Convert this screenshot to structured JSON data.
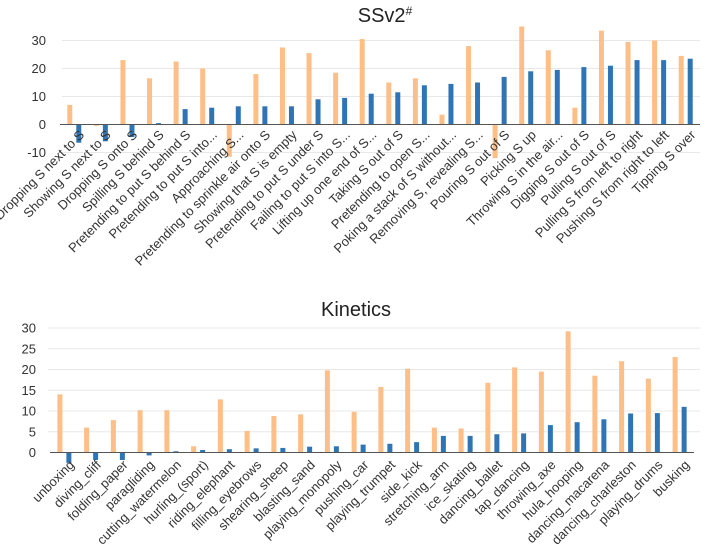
{
  "colors": {
    "series_a": "#fdbf87",
    "series_b": "#2f75b5"
  },
  "chart_data": [
    {
      "type": "bar",
      "title": "SSv2",
      "title_sup": "#",
      "xlabel": "",
      "ylabel": "",
      "ylim": [
        -13,
        36
      ],
      "yticks": [
        -10,
        0,
        10,
        20,
        30
      ],
      "grid": true,
      "categories": [
        "Dropping S next to S",
        "Showing S next to S",
        "Dropping S onto S",
        "Spilling S behind S",
        "Pretending to put S behind S",
        "Pretending to put S into...",
        "Approaching S...",
        "Pretending to sprinkle air onto S",
        "Showing that S is empty",
        "Pretending to put S under S",
        "Failing to put S into S...",
        "Lifting up one end of S...",
        "Taking S out of S",
        "Pretending to open S...",
        "Poking a stack of S without...",
        "Removing S, revealing S...",
        "Pouring S out of S",
        "Picking S up",
        "Throwing S in the air...",
        "Digging S out of S",
        "Pulling S out of S",
        "Pulling S from left to right",
        "Pushing S from right to left",
        "Tipping S over"
      ],
      "series": [
        {
          "name": "series_a",
          "values": [
            7,
            -0.5,
            23,
            16.5,
            22.5,
            20,
            -11.5,
            18,
            27.5,
            25.5,
            18.5,
            30.5,
            15,
            16.5,
            3.5,
            28,
            -12,
            35,
            26.5,
            6,
            33.5,
            29.5,
            30,
            24.5
          ]
        },
        {
          "name": "series_b",
          "values": [
            -6.5,
            -6,
            -4.5,
            0.5,
            5.5,
            6,
            6.5,
            6.5,
            6.5,
            9,
            9.5,
            11,
            11.5,
            14,
            14.5,
            15,
            17,
            19,
            19.5,
            20.5,
            21,
            23,
            23,
            23.5
          ]
        }
      ]
    },
    {
      "type": "bar",
      "title": "Kinetics",
      "xlabel": "",
      "ylabel": "",
      "ylim": [
        -2.5,
        31
      ],
      "yticks": [
        0,
        5,
        10,
        15,
        20,
        25,
        30
      ],
      "grid": true,
      "categories": [
        "unboxing",
        "diving_cliff",
        "folding_paper",
        "paragliding",
        "cutting_watermelon",
        "hurling_(sport)",
        "riding_elephant",
        "filling_eyebrows",
        "shearing_sheep",
        "blasting_sand",
        "playing_monopoly",
        "pushing_car",
        "playing_trumpet",
        "side_kick",
        "stretching_arm",
        "ice_skating",
        "dancing_ballet",
        "tap_dancing",
        "throwing_axe",
        "hula_hooping",
        "dancing_macarena",
        "dancing_charleston",
        "playing_drums",
        "busking"
      ],
      "series": [
        {
          "name": "series_a",
          "values": [
            14,
            6,
            7.8,
            10.2,
            10.2,
            1.5,
            12.8,
            5.2,
            8.8,
            9.2,
            19.8,
            9.8,
            15.8,
            20.2,
            6,
            5.8,
            16.8,
            20.5,
            19.5,
            29.2,
            18.5,
            22,
            17.8,
            23
          ]
        },
        {
          "name": "series_b",
          "values": [
            -2.5,
            -1.8,
            -1.8,
            -0.7,
            0.3,
            0.6,
            0.8,
            1,
            1.1,
            1.4,
            1.5,
            1.9,
            2.1,
            2.5,
            4,
            4,
            4.4,
            4.6,
            6.6,
            7.3,
            8,
            9.4,
            9.5,
            11
          ]
        }
      ]
    }
  ]
}
